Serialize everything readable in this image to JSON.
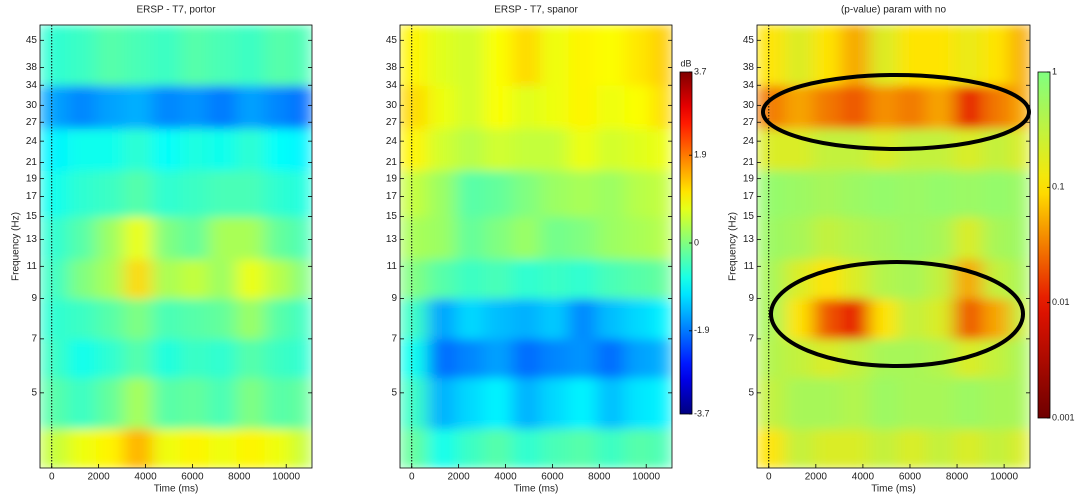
{
  "chart_data": [
    {
      "type": "heatmap",
      "title": "ERSP - T7, portor",
      "x_label": "Time (ms)",
      "y_label": "Frequency (Hz)",
      "xlim": [
        -500,
        11100
      ],
      "xticks": [
        0,
        2000,
        4000,
        6000,
        8000,
        10000
      ],
      "ylim": [
        3.13,
        49.5
      ],
      "yticks": [
        5,
        7,
        9,
        11,
        13,
        15,
        17,
        19,
        21,
        24,
        27,
        30,
        34,
        38,
        45
      ],
      "log_y": true,
      "x_edges": [
        -500,
        700,
        1900,
        3100,
        4300,
        5500,
        6700,
        7900,
        9100,
        10300,
        11100
      ],
      "y_edges": [
        3.13,
        4,
        5.5,
        7,
        9,
        11.5,
        15,
        20,
        26,
        34,
        49.5
      ],
      "z": [
        [
          0.5,
          0.8,
          1.0,
          1.5,
          0.8,
          1.0,
          0.8,
          1.0,
          0.8,
          0.5
        ],
        [
          -0.3,
          -0.5,
          -0.2,
          0.3,
          -0.3,
          -0.2,
          -0.4,
          0,
          -0.3,
          -0.2
        ],
        [
          -0.5,
          -0.8,
          -0.6,
          -0.3,
          -0.7,
          -0.5,
          -0.6,
          -0.3,
          -0.5,
          -0.6
        ],
        [
          -0.6,
          -0.5,
          -0.3,
          0,
          -0.4,
          -0.3,
          -0.2,
          0.2,
          -0.3,
          -0.5
        ],
        [
          -0.5,
          0,
          0.3,
          1.2,
          0.3,
          0.5,
          0.2,
          0.8,
          0.4,
          0
        ],
        [
          -0.6,
          -0.3,
          0.2,
          0.8,
          0,
          -0.2,
          0.3,
          0.3,
          -0.2,
          -0.4
        ],
        [
          -0.8,
          -0.6,
          -0.5,
          -0.3,
          -0.6,
          -0.5,
          -0.4,
          -0.4,
          -0.6,
          -0.7
        ],
        [
          -1.0,
          -0.8,
          -0.8,
          -0.6,
          -0.9,
          -0.7,
          -0.8,
          -0.6,
          -0.9,
          -1.0
        ],
        [
          -1.6,
          -1.8,
          -1.6,
          -1.5,
          -1.8,
          -1.7,
          -1.9,
          -1.6,
          -1.8,
          -2.0
        ],
        [
          -0.6,
          -0.5,
          -0.3,
          -0.4,
          -0.5,
          -0.3,
          -0.4,
          -0.5,
          -0.3,
          -0.4
        ]
      ],
      "colormap": "jet",
      "clim": [
        -3.7,
        3.7
      ]
    },
    {
      "type": "heatmap",
      "title": "ERSP - T7, spanor",
      "x_label": "Time (ms)",
      "xlim": [
        -500,
        11100
      ],
      "xticks": [
        0,
        2000,
        4000,
        6000,
        8000,
        10000
      ],
      "ylim": [
        3.13,
        49.5
      ],
      "yticks": [
        5,
        7,
        9,
        11,
        13,
        15,
        17,
        19,
        21,
        24,
        27,
        30,
        34,
        38,
        45
      ],
      "log_y": true,
      "x_edges": [
        -500,
        700,
        1900,
        3100,
        4300,
        5500,
        6700,
        7900,
        9100,
        10300,
        11100
      ],
      "y_edges": [
        3.13,
        4,
        5.5,
        7,
        9,
        11.5,
        15,
        20,
        26,
        34,
        49.5
      ],
      "z": [
        [
          -0.2,
          -0.8,
          -0.5,
          -0.3,
          -0.6,
          -0.4,
          -0.3,
          -0.5,
          -0.3,
          -0.4
        ],
        [
          -0.5,
          -1.5,
          -1.2,
          -1.0,
          -1.5,
          -1.2,
          -1.0,
          -1.4,
          -1.1,
          -1.0
        ],
        [
          -0.8,
          -2.0,
          -1.8,
          -1.6,
          -2.0,
          -1.8,
          -1.7,
          -2.0,
          -1.6,
          -1.5
        ],
        [
          -0.5,
          -1.6,
          -1.2,
          -1.4,
          -1.5,
          -1.3,
          -1.8,
          -1.4,
          -1.2,
          -1.0
        ],
        [
          0,
          -0.3,
          -0.5,
          -0.4,
          -0.6,
          -0.5,
          -0.6,
          -0.4,
          -0.3,
          -0.2
        ],
        [
          0.3,
          0.2,
          -0.2,
          0,
          0.2,
          -0.1,
          0,
          0.2,
          0.3,
          0.4
        ],
        [
          0.5,
          0.2,
          -0.3,
          -0.2,
          0,
          0.2,
          0.3,
          0.2,
          0.4,
          0.5
        ],
        [
          1.0,
          0.6,
          0.4,
          0.6,
          0.5,
          0.5,
          0.8,
          0.6,
          0.7,
          0.8
        ],
        [
          1.2,
          0.8,
          0.6,
          0.9,
          0.7,
          0.8,
          1.0,
          0.8,
          0.9,
          1.2
        ],
        [
          1.0,
          0.7,
          0.6,
          0.9,
          1.2,
          0.8,
          1.0,
          0.9,
          1.1,
          1.3
        ]
      ],
      "colormap": "jet",
      "clim": [
        -3.7,
        3.7
      ],
      "colorbar_label": "dB",
      "cticks": [
        3.7,
        1.9,
        0,
        -1.9,
        -3.7
      ]
    },
    {
      "type": "heatmap",
      "title": "(p-value) param with no",
      "x_label": "Time (ms)",
      "y_label": "Frequency (Hz)",
      "xlim": [
        -500,
        11100
      ],
      "xticks": [
        0,
        2000,
        4000,
        6000,
        8000,
        10000
      ],
      "ylim": [
        3.13,
        49.5
      ],
      "yticks": [
        5,
        7,
        9,
        11,
        13,
        15,
        17,
        19,
        21,
        24,
        27,
        30,
        34,
        38,
        45
      ],
      "log_y": true,
      "x_edges": [
        -500,
        700,
        1900,
        3100,
        4300,
        5500,
        6700,
        7900,
        9100,
        10300,
        11100
      ],
      "y_edges": [
        3.13,
        4,
        5.5,
        7,
        9,
        11.5,
        15,
        20,
        26,
        34,
        49.5
      ],
      "z": [
        [
          0.1,
          0.3,
          0.2,
          0.2,
          0.3,
          0.2,
          0.3,
          0.2,
          0.3,
          0.2
        ],
        [
          0.3,
          0.5,
          0.5,
          0.4,
          0.6,
          0.5,
          0.5,
          0.6,
          0.5,
          0.5
        ],
        [
          0.4,
          0.3,
          0.2,
          0.3,
          0.5,
          0.5,
          0.4,
          0.2,
          0.3,
          0.5
        ],
        [
          0.5,
          0.1,
          0.02,
          0.01,
          0.1,
          0.3,
          0.2,
          0.02,
          0.05,
          0.3
        ],
        [
          0.5,
          0.2,
          0.1,
          0.2,
          0.4,
          0.5,
          0.3,
          0.05,
          0.3,
          0.5
        ],
        [
          0.6,
          0.5,
          0.3,
          0.4,
          0.5,
          0.6,
          0.5,
          0.2,
          0.5,
          0.6
        ],
        [
          0.7,
          0.6,
          0.5,
          0.6,
          0.7,
          0.6,
          0.7,
          0.6,
          0.7,
          0.6
        ],
        [
          0.2,
          0.2,
          0.3,
          0.3,
          0.2,
          0.3,
          0.3,
          0.2,
          0.3,
          0.2
        ],
        [
          0.03,
          0.05,
          0.03,
          0.02,
          0.04,
          0.03,
          0.05,
          0.01,
          0.03,
          0.05
        ],
        [
          0.1,
          0.2,
          0.1,
          0.05,
          0.2,
          0.1,
          0.1,
          0.15,
          0.1,
          0.05
        ]
      ],
      "colormap": "pvalue",
      "clim": [
        0.001,
        1
      ],
      "log_c": true,
      "cticks": [
        1,
        0.1,
        0.01,
        0.001
      ]
    }
  ]
}
